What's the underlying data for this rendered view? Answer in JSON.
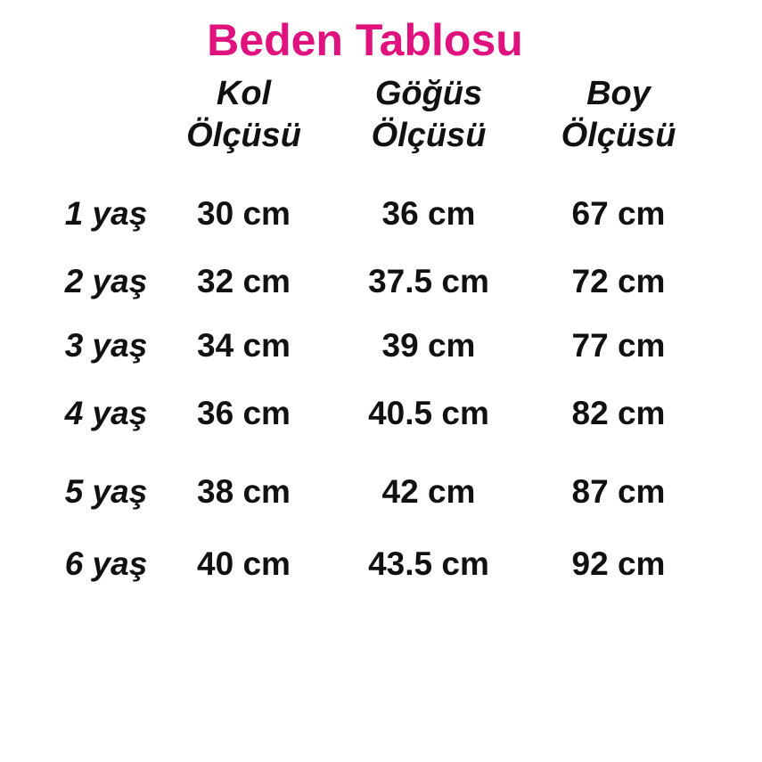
{
  "title": "Beden Tablosu",
  "colors": {
    "title_pink": "#e0127e",
    "text": "#111111",
    "background": "#ffffff"
  },
  "header_lines": [
    {
      "line1": "Kol",
      "line2": "Ölçüsü"
    },
    {
      "line1": "Göğüs",
      "line2": "Ölçüsü"
    },
    {
      "line1": "Boy",
      "line2": "Ölçüsü"
    }
  ],
  "chart_data": {
    "type": "table",
    "title": "Beden Tablosu",
    "columns": [
      "",
      "Kol Ölçüsü",
      "Göğüs Ölçüsü",
      "Boy Ölçüsü"
    ],
    "rows": [
      [
        "1 yaş",
        "30 cm",
        "36 cm",
        "67 cm"
      ],
      [
        "2 yaş",
        "32 cm",
        "37.5 cm",
        "72 cm"
      ],
      [
        "3 yaş",
        "34 cm",
        "39 cm",
        "77 cm"
      ],
      [
        "4 yaş",
        "36 cm",
        "40.5 cm",
        "82 cm"
      ],
      [
        "5 yaş",
        "38 cm",
        "42 cm",
        "87 cm"
      ],
      [
        "6 yaş",
        "40 cm",
        "43.5 cm",
        "92 cm"
      ]
    ],
    "layout": {
      "gridlines": false,
      "title_position": "top-center"
    }
  }
}
